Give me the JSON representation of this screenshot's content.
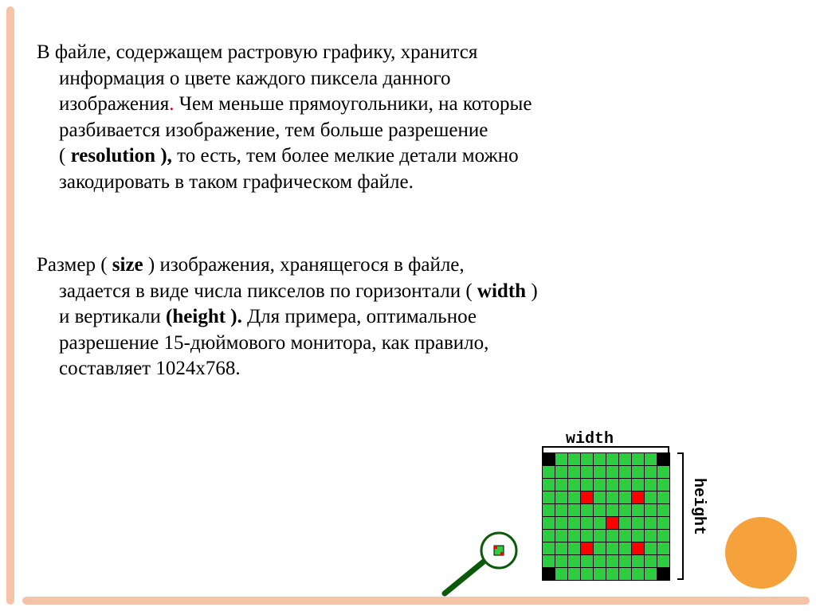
{
  "para1": {
    "line1": "В файле, содержащем растровую графику, хранится",
    "line2": "информация о цвете каждого пиксела данного",
    "line3_a": "изображения",
    "line3_b": " Чем меньше прямоугольники, на которые",
    "line4": "разбивается изображение, тем больше разрешение",
    "line5_a": "( ",
    "line5_b": "resolution ),",
    "line5_c": " то есть, тем более мелкие детали можно",
    "line6": "закодировать в таком графическом файле."
  },
  "para2": {
    "line1_a": "Размер ( ",
    "line1_b": "size",
    "line1_c": " ) изображения, хранящегося в файле,",
    "line2_a": "задается в виде числа пикселов по горизонтали ( ",
    "line2_b": "width ",
    "line2_c": ")",
    "line3_a": "и вертикали ",
    "line3_b": "(height ).",
    "line3_c": " Для примера, оптимальное",
    "line4": "разрешение 15-дюймового монитора, как правило,",
    "line5": "составляет 1024x768."
  },
  "figure": {
    "width_label": "width",
    "height_label": "height",
    "grid_size": 10,
    "colors": {
      "default": "#2ecc40",
      "black": "#000000",
      "red": "#ff0000"
    },
    "black_cells": [
      [
        0,
        0
      ],
      [
        0,
        9
      ],
      [
        9,
        0
      ],
      [
        9,
        9
      ]
    ],
    "red_cells": [
      [
        3,
        3
      ],
      [
        3,
        7
      ],
      [
        5,
        5
      ],
      [
        7,
        3
      ],
      [
        7,
        7
      ]
    ]
  },
  "decor": {
    "stripe_color": "#f6c3a8",
    "circle_color": "#f5a23d"
  }
}
